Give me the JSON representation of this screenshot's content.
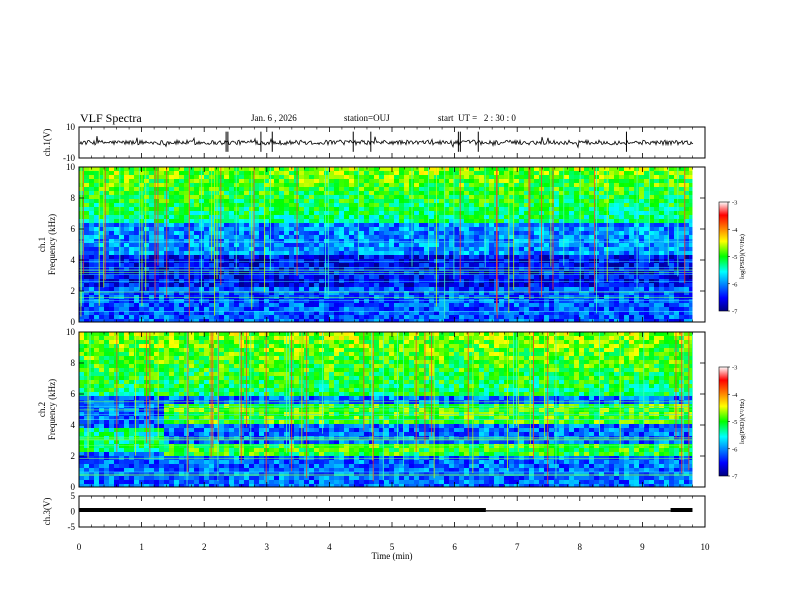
{
  "header": {
    "title": "VLF Spectra",
    "date": "Jan. 6 , 2026",
    "station": "station=OUJ",
    "start": "start  UT =   2 : 30 : 0"
  },
  "chart_data": [
    {
      "type": "line",
      "name": "ch1-waveform",
      "ylabel": "ch.1(V)",
      "ylim": [
        -10,
        10
      ],
      "ytick_labels": [
        "10",
        "-10"
      ],
      "xlim": [
        0,
        10
      ],
      "baseline": 0
    },
    {
      "type": "heatmap",
      "name": "ch1-spectrogram",
      "ylabel": "ch.1\nFrequency (kHz)",
      "ylim": [
        0,
        10
      ],
      "ytick_labels": [
        "0",
        "2",
        "4",
        "6",
        "8",
        "10"
      ],
      "xlim": [
        0,
        10
      ],
      "data_extent_min": 9.8,
      "colorbar": {
        "label": "log(PSD)(V²/Hz)",
        "range": [
          -7,
          -3
        ],
        "tick_labels": [
          "-3",
          "-4",
          "-5",
          "-6",
          "-7"
        ]
      }
    },
    {
      "type": "heatmap",
      "name": "ch2-spectrogram",
      "ylabel": "ch.2\nFrequency (kHz)",
      "ylim": [
        0,
        10
      ],
      "ytick_labels": [
        "0",
        "2",
        "4",
        "6",
        "8",
        "10"
      ],
      "xlim": [
        0,
        10
      ],
      "data_extent_min": 9.8,
      "colorbar": {
        "label": "log(PSD)(V²/Hz)",
        "range": [
          -7,
          -3
        ],
        "tick_labels": [
          "-3",
          "-4",
          "-5",
          "-6",
          "-7"
        ]
      }
    },
    {
      "type": "line",
      "name": "ch3-level",
      "ylabel": "ch.3(V)",
      "ylim": [
        -5,
        5
      ],
      "ytick_labels": [
        "5",
        "0",
        "-5"
      ],
      "xlim": [
        0,
        10
      ],
      "segments": [
        {
          "x_start": 0,
          "x_end": 6.5,
          "value": 0.5,
          "thickness": "heavy"
        },
        {
          "x_start": 6.5,
          "x_end": 9.45,
          "value": 0.2,
          "thickness": "thin"
        },
        {
          "x_start": 9.45,
          "x_end": 9.8,
          "value": 0.5,
          "thickness": "heavy"
        }
      ]
    }
  ],
  "xaxis": {
    "label": "Time (min)",
    "tick_labels": [
      "0",
      "1",
      "2",
      "3",
      "4",
      "5",
      "6",
      "7",
      "8",
      "9",
      "10"
    ]
  },
  "colors": {
    "axis": "#000000",
    "background": "#ffffff"
  }
}
